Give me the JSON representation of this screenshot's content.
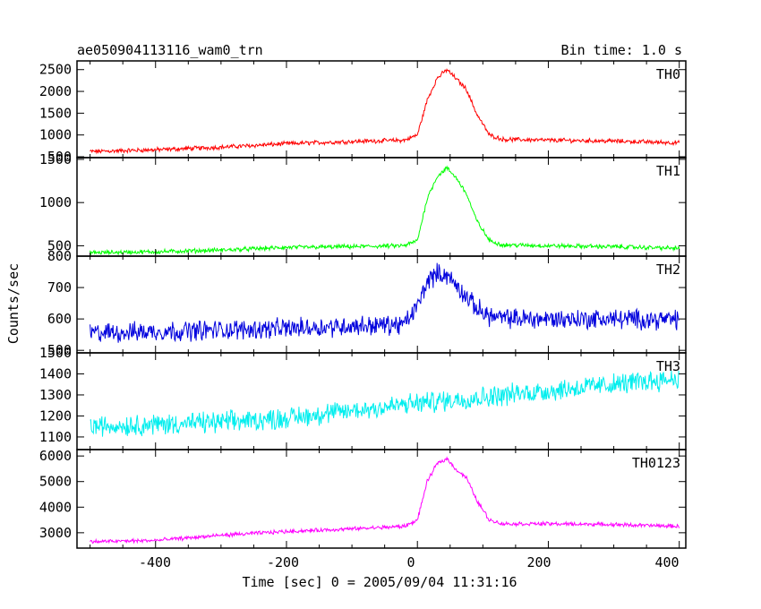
{
  "header": {
    "title": "ae050904113116_wam0_trn",
    "bin_time": "Bin time: 1.0 s"
  },
  "axes": {
    "xlabel": "Time [sec] 0 = 2005/09/04 11:31:16",
    "ylabel": "Counts/sec",
    "x_ticks": [
      "-400",
      "-200",
      "0",
      "200",
      "400"
    ]
  },
  "chart_data": [
    {
      "type": "line",
      "name": "TH0",
      "color": "#ff0000",
      "xlim": [
        -520,
        410
      ],
      "ylim": [
        480,
        2700
      ],
      "yticks": [
        500,
        1000,
        1500,
        2000,
        2500
      ],
      "x": [
        -500,
        -400,
        -300,
        -200,
        -100,
        -20,
        0,
        15,
        30,
        45,
        60,
        75,
        90,
        110,
        130,
        200,
        300,
        400
      ],
      "y": [
        620,
        660,
        720,
        800,
        850,
        880,
        1000,
        1800,
        2300,
        2500,
        2280,
        2050,
        1500,
        1000,
        900,
        880,
        860,
        820
      ],
      "noise": 40
    },
    {
      "type": "line",
      "name": "TH1",
      "color": "#00ff00",
      "xlim": [
        -520,
        410
      ],
      "ylim": [
        380,
        1520
      ],
      "yticks": [
        500,
        1000,
        1500
      ],
      "x": [
        -500,
        -400,
        -300,
        -200,
        -100,
        -20,
        0,
        15,
        30,
        45,
        60,
        75,
        90,
        110,
        130,
        200,
        300,
        400
      ],
      "y": [
        420,
        430,
        450,
        480,
        490,
        500,
        560,
        1050,
        1300,
        1400,
        1280,
        1100,
        800,
        560,
        510,
        500,
        490,
        470
      ],
      "noise": 20
    },
    {
      "type": "line",
      "name": "TH2",
      "color": "#0000dd",
      "xlim": [
        -520,
        410
      ],
      "ylim": [
        492,
        800
      ],
      "yticks": [
        500,
        600,
        700,
        800
      ],
      "x": [
        -500,
        -400,
        -300,
        -200,
        -100,
        -20,
        0,
        15,
        30,
        45,
        60,
        75,
        90,
        110,
        130,
        200,
        300,
        400
      ],
      "y": [
        555,
        560,
        565,
        570,
        578,
        582,
        640,
        720,
        745,
        740,
        705,
        670,
        635,
        610,
        602,
        600,
        600,
        598
      ],
      "noise": 25
    },
    {
      "type": "line",
      "name": "TH3",
      "color": "#00eeee",
      "xlim": [
        -520,
        410
      ],
      "ylim": [
        1040,
        1500
      ],
      "yticks": [
        1100,
        1200,
        1300,
        1400,
        1500
      ],
      "x": [
        -500,
        -400,
        -300,
        -200,
        -100,
        0,
        100,
        200,
        300,
        400
      ],
      "y": [
        1150,
        1160,
        1170,
        1190,
        1225,
        1260,
        1290,
        1320,
        1350,
        1380
      ],
      "noise": 40
    },
    {
      "type": "line",
      "name": "TH0123",
      "color": "#ff00ff",
      "xlim": [
        -520,
        410
      ],
      "ylim": [
        2400,
        6250
      ],
      "yticks": [
        3000,
        4000,
        5000,
        6000
      ],
      "x": [
        -500,
        -400,
        -300,
        -200,
        -100,
        -20,
        0,
        15,
        30,
        45,
        60,
        75,
        90,
        110,
        130,
        200,
        300,
        400
      ],
      "y": [
        2650,
        2700,
        2900,
        3050,
        3150,
        3250,
        3500,
        5000,
        5700,
        5900,
        5450,
        5150,
        4300,
        3500,
        3350,
        3350,
        3320,
        3250
      ],
      "noise": 60
    }
  ]
}
